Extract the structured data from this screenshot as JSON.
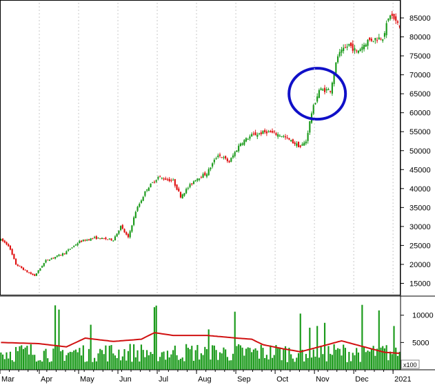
{
  "colors": {
    "up": "#1a9a1a",
    "down": "#e01010",
    "volume": "#1a9a1a",
    "volume_ma": "#d01010",
    "highlight_circle": "#1010c8",
    "axis": "#000000",
    "grid": "#c8c8c8",
    "background": "#ffffff"
  },
  "chart_data": [
    {
      "type": "candlestick",
      "title": "",
      "ylim": [
        12000,
        89000
      ],
      "y_ticks": [
        "15000",
        "20000",
        "25000",
        "30000",
        "35000",
        "40000",
        "45000",
        "50000",
        "55000",
        "60000",
        "65000",
        "70000",
        "75000",
        "80000",
        "85000"
      ],
      "y_tick_values": [
        15000,
        20000,
        25000,
        30000,
        35000,
        40000,
        45000,
        50000,
        55000,
        60000,
        65000,
        70000,
        75000,
        80000,
        85000
      ],
      "x_tick_labels": [
        "Mar",
        "Apr",
        "May",
        "Jun",
        "Jul",
        "Aug",
        "Sep",
        "Oct",
        "Nov",
        "Dec",
        "2021"
      ],
      "x_tick_positions": [
        0,
        21,
        42,
        63,
        84,
        105,
        126,
        147,
        168,
        189,
        210
      ],
      "n_sessions": 214,
      "trend_anchors": [
        [
          0,
          26500
        ],
        [
          4,
          25000
        ],
        [
          8,
          20000
        ],
        [
          14,
          18000
        ],
        [
          18,
          17000
        ],
        [
          24,
          21000
        ],
        [
          34,
          23000
        ],
        [
          42,
          26000
        ],
        [
          50,
          27000
        ],
        [
          60,
          26500
        ],
        [
          64,
          30000
        ],
        [
          68,
          27000
        ],
        [
          72,
          34000
        ],
        [
          78,
          40000
        ],
        [
          84,
          43000
        ],
        [
          92,
          42000
        ],
        [
          96,
          38000
        ],
        [
          104,
          42500
        ],
        [
          110,
          44000
        ],
        [
          116,
          49000
        ],
        [
          122,
          47000
        ],
        [
          128,
          52000
        ],
        [
          134,
          54000
        ],
        [
          142,
          55000
        ],
        [
          150,
          54000
        ],
        [
          160,
          51000
        ],
        [
          163,
          52500
        ],
        [
          166,
          60000
        ],
        [
          170,
          66000
        ],
        [
          176,
          66000
        ],
        [
          180,
          75000
        ],
        [
          186,
          78000
        ],
        [
          190,
          76000
        ],
        [
          196,
          79000
        ],
        [
          204,
          80000
        ],
        [
          208,
          86000
        ],
        [
          214,
          82000
        ]
      ],
      "annotation": {
        "shape": "circle",
        "x_session": 169,
        "y_value": 65000,
        "label": ""
      }
    },
    {
      "type": "bar",
      "title": "",
      "scale_note": "x100",
      "ylim": [
        0,
        13500
      ],
      "y_ticks": [
        "5000",
        "10000"
      ],
      "y_tick_values": [
        5000,
        10000
      ],
      "typical_volume": 4000,
      "moving_average_anchors": [
        [
          0,
          5000
        ],
        [
          20,
          4800
        ],
        [
          35,
          4200
        ],
        [
          45,
          5800
        ],
        [
          60,
          5200
        ],
        [
          75,
          5600
        ],
        [
          82,
          6800
        ],
        [
          92,
          6300
        ],
        [
          110,
          6300
        ],
        [
          126,
          5800
        ],
        [
          134,
          5600
        ],
        [
          140,
          4600
        ],
        [
          150,
          3900
        ],
        [
          160,
          3300
        ],
        [
          170,
          4200
        ],
        [
          182,
          5300
        ],
        [
          194,
          4200
        ],
        [
          205,
          3200
        ],
        [
          214,
          3000
        ]
      ]
    }
  ]
}
